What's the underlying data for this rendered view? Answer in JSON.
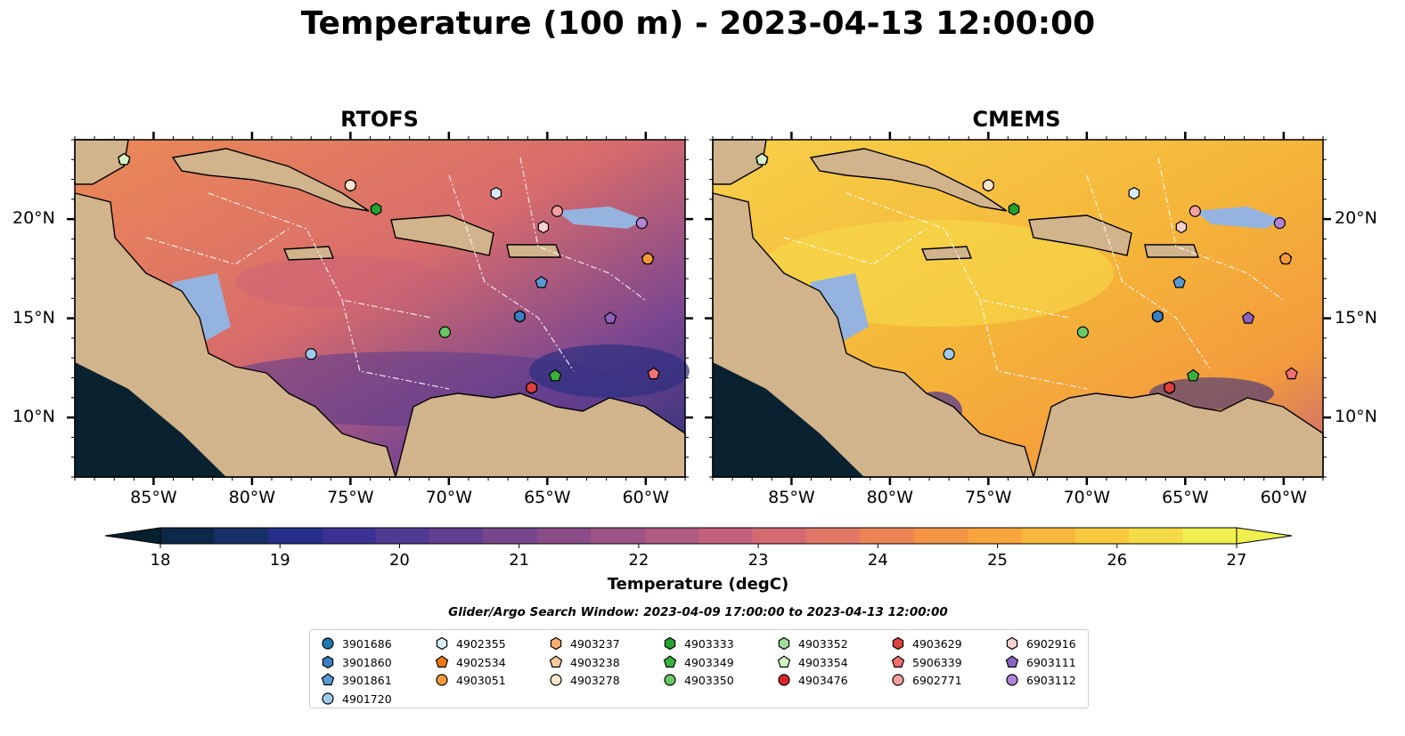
{
  "title": "Temperature (100 m) - 2023-04-13 12:00:00",
  "panels": [
    {
      "title": "RTOFS",
      "theme": "warm-purple"
    },
    {
      "title": "CMEMS",
      "theme": "warm-yellow"
    }
  ],
  "axes": {
    "x_ticks": [
      "85°W",
      "80°W",
      "75°W",
      "70°W",
      "65°W",
      "60°W"
    ],
    "y_ticks": [
      "20°N",
      "15°N",
      "10°N"
    ]
  },
  "colorbar": {
    "label": "Temperature (degC)",
    "ticks": [
      "18",
      "19",
      "20",
      "21",
      "22",
      "23",
      "24",
      "25",
      "26",
      "27"
    ],
    "colors": [
      "#07202f",
      "#0b2848",
      "#162f66",
      "#26308a",
      "#3b3193",
      "#4f3a92",
      "#623f8f",
      "#77468c",
      "#8a4c88",
      "#9d5385",
      "#b05a81",
      "#c2617b",
      "#d36a72",
      "#e17766",
      "#ec8556",
      "#f49445",
      "#f7a43d",
      "#f8b63b",
      "#f8c83e",
      "#f5db45",
      "#eff04f"
    ]
  },
  "search_window": "Glider/Argo Search Window: 2023-04-09 17:00:00 to 2023-04-13 12:00:00",
  "colors": {
    "land": "#d2b48c",
    "shelf": "#94b3de",
    "deep": "#0a2230"
  },
  "legend": {
    "items": [
      {
        "id": "3901686",
        "marker": "circle",
        "color": "#1f77b4"
      },
      {
        "id": "3901860",
        "marker": "hexagon",
        "color": "#3a80c4"
      },
      {
        "id": "3901861",
        "marker": "pentagon",
        "color": "#5a9ad4"
      },
      {
        "id": "4901720",
        "marker": "circle",
        "color": "#9ecae9"
      },
      {
        "id": "4902355",
        "marker": "hexagon",
        "color": "#d8ecfa"
      },
      {
        "id": "4902534",
        "marker": "pentagon",
        "color": "#f07a10"
      },
      {
        "id": "4903051",
        "marker": "circle",
        "color": "#f59a3a"
      },
      {
        "id": "4903237",
        "marker": "hexagon",
        "color": "#fbae6b"
      },
      {
        "id": "4903238",
        "marker": "pentagon",
        "color": "#fcc99a"
      },
      {
        "id": "4903278",
        "marker": "circle",
        "color": "#fee4cc"
      },
      {
        "id": "4903333",
        "marker": "hexagon",
        "color": "#24a22c"
      },
      {
        "id": "4903349",
        "marker": "pentagon",
        "color": "#3bb33b"
      },
      {
        "id": "4903350",
        "marker": "circle",
        "color": "#69c765"
      },
      {
        "id": "4903352",
        "marker": "hexagon",
        "color": "#a0dc9a"
      },
      {
        "id": "4903354",
        "marker": "pentagon",
        "color": "#d4f2c8"
      },
      {
        "id": "4903476",
        "marker": "circle",
        "color": "#d62728"
      },
      {
        "id": "4903629",
        "marker": "hexagon",
        "color": "#e04040"
      },
      {
        "id": "5906339",
        "marker": "pentagon",
        "color": "#ef7070"
      },
      {
        "id": "6902771",
        "marker": "circle",
        "color": "#f5a0a0"
      },
      {
        "id": "6902916",
        "marker": "hexagon",
        "color": "#fad0d0"
      },
      {
        "id": "6903111",
        "marker": "pentagon",
        "color": "#8c62c0"
      },
      {
        "id": "6903112",
        "marker": "circle",
        "color": "#b084d6"
      }
    ]
  }
}
